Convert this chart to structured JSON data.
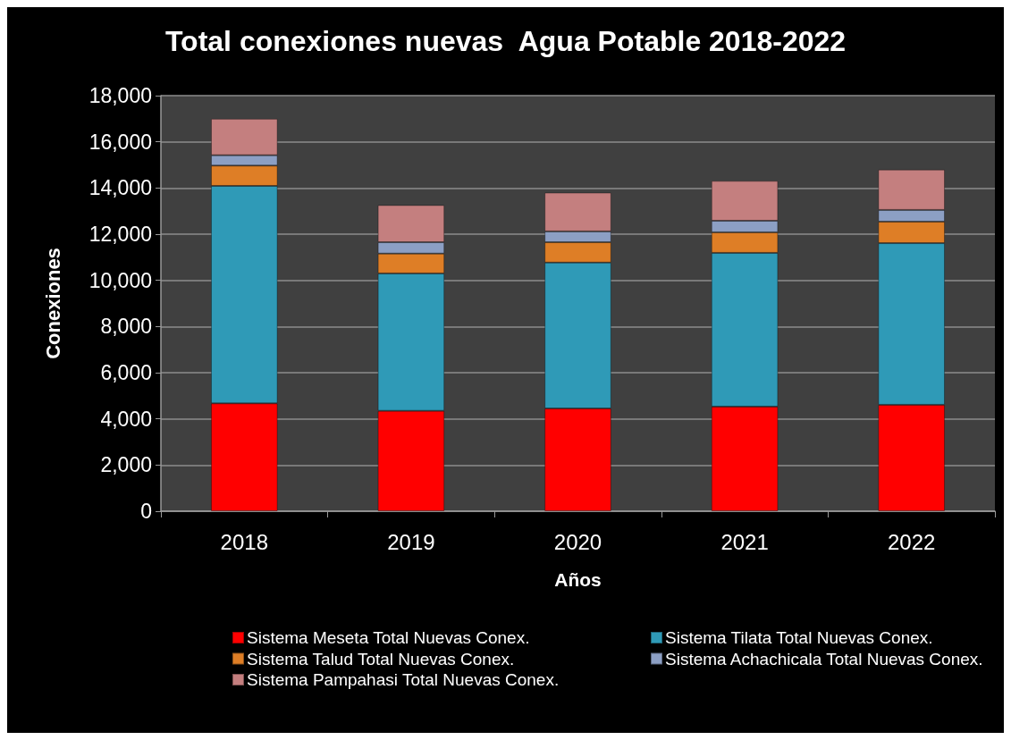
{
  "chart_data": {
    "type": "bar",
    "title": "Total conexiones nuevas  Agua Potable 2018-2022",
    "xlabel": "Años",
    "ylabel": "Conexiones",
    "categories": [
      "2018",
      "2019",
      "2020",
      "2021",
      "2022"
    ],
    "series": [
      {
        "name": "Sistema Meseta Total Nuevas Conex.",
        "color": "#ff0000",
        "values": [
          4670,
          4350,
          4450,
          4530,
          4610
        ]
      },
      {
        "name": "Sistema Tilata Total Nuevas Conex.",
        "color": "#2f9ab7",
        "values": [
          9420,
          5950,
          6320,
          6660,
          7000
        ]
      },
      {
        "name": "Sistema Talud Total Nuevas Conex.",
        "color": "#de7e26",
        "values": [
          880,
          860,
          880,
          890,
          930
        ]
      },
      {
        "name": "Sistema Achachicala Total Nuevas Conex.",
        "color": "#8c9fc4",
        "values": [
          450,
          490,
          470,
          500,
          510
        ]
      },
      {
        "name": "Sistema Pampahasi Total Nuevas Conex.",
        "color": "#c47f7f",
        "values": [
          1580,
          1610,
          1680,
          1730,
          1750
        ]
      }
    ],
    "stacked": true,
    "ylim": [
      0,
      18000
    ],
    "yticks": [
      0,
      {
        "value": 2000,
        "label": "2,000"
      },
      {
        "value": 4000,
        "label": "4,000"
      },
      {
        "value": 6000,
        "label": "6,000"
      },
      {
        "value": 8000,
        "label": "8,000"
      },
      {
        "value": 10000,
        "label": "10,000"
      },
      {
        "value": 12000,
        "label": "12,000"
      },
      {
        "value": 14000,
        "label": "14,000"
      },
      {
        "value": 16000,
        "label": "16,000"
      },
      {
        "value": 18000,
        "label": "18,000"
      }
    ],
    "grid": "y",
    "legend": "bottom"
  }
}
